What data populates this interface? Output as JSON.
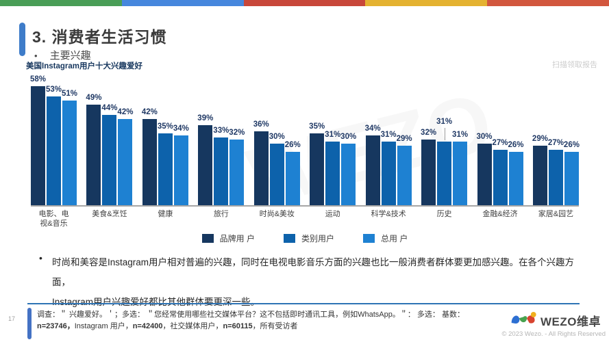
{
  "slide": {
    "title": "3. 消费者生活习惯",
    "subtitle_bullet": "主要兴趣",
    "chart_title": "美国Instagram用户十大兴趣爱好",
    "scan_watermark": "扫描领取报告",
    "center_watermark": "WEZO",
    "page_number": "17",
    "body_bullet": "•",
    "body_text": "时尚和美容是Instagram用户相对普遍的兴趣，同时在电视电影音乐方面的兴趣也比一般消费者群体要更加感兴趣。在各个兴趣方面，\nInstagram用户兴趣爱好都比其他群体要更深一些。",
    "stripe_colors": [
      "#4a9e57",
      "#4687dd",
      "#c8473a",
      "#e4b231",
      "#d2573e"
    ]
  },
  "footer": {
    "l1a": "调查：＂ 兴趣爱好。＇；多选： ＂您经常使用哪些社交媒体平台？这不包括即时通讯工具，例如WhatsApp。＂： 多选： 基数：",
    "l1b": "n=23746，",
    "l2a": "Instagram 用户，",
    "l2b": "n=42400",
    "l2c": "，社交媒体用户，",
    "l2d": "n=60115",
    "l2e": "，所有受访者",
    "logo_text": "WEZO维卓",
    "copyright": "© 2023 Wezo. - All Rights Reserved"
  },
  "chart_data": {
    "type": "bar",
    "title": "美国Instagram用户十大兴趣爱好",
    "unit": "%",
    "categories": [
      "电影、电\n视&音乐",
      "美食&烹饪",
      "健康",
      "旅行",
      "时尚&美妆",
      "运动",
      "科学&技术",
      "历史",
      "金融&经济",
      "家居&园艺"
    ],
    "series": [
      {
        "name": "品牌用 户",
        "color": "#16375f",
        "values": [
          58,
          49,
          42,
          39,
          36,
          35,
          34,
          32,
          30,
          29
        ]
      },
      {
        "name": "类别用户",
        "color": "#0d62ab",
        "values": [
          53,
          44,
          35,
          33,
          30,
          31,
          31,
          31,
          27,
          27
        ]
      },
      {
        "name": "总用 户",
        "color": "#1e81d2",
        "values": [
          51,
          42,
          34,
          32,
          26,
          30,
          29,
          31,
          26,
          26
        ]
      }
    ],
    "ylim": [
      0,
      60
    ],
    "gridlines": false,
    "legend_position": "bottom",
    "raised_label": {
      "category_index": 7,
      "series_index": 1
    }
  }
}
